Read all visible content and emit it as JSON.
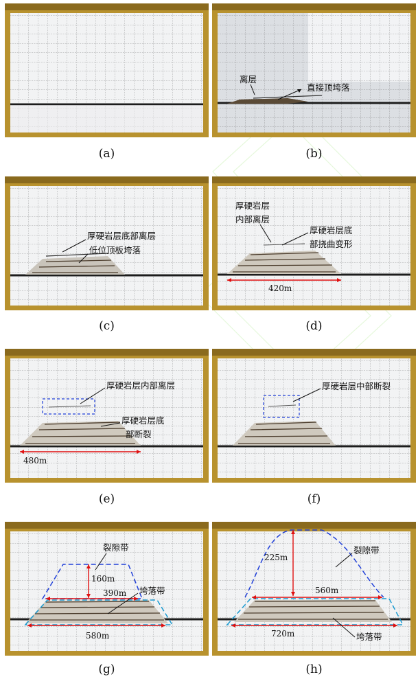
{
  "panels": [
    {
      "caption": "(a)",
      "labels": [],
      "dims": []
    },
    {
      "caption": "(b)",
      "labels": [
        "离层",
        "直接顶垮落"
      ],
      "dims": []
    },
    {
      "caption": "(c)",
      "labels": [
        "厚硬岩层底部离层",
        "低位顶板垮落"
      ],
      "dims": []
    },
    {
      "caption": "(d)",
      "labels": [
        "厚硬岩层",
        "内部离层",
        "厚硬岩层底",
        "部挠曲变形"
      ],
      "dims": [
        "420m"
      ]
    },
    {
      "caption": "(e)",
      "labels": [
        "厚硬岩层内部离层",
        "厚硬岩层底",
        "部断裂"
      ],
      "dims": [
        "480m"
      ]
    },
    {
      "caption": "(f)",
      "labels": [
        "厚硬岩层中部断裂"
      ],
      "dims": []
    },
    {
      "caption": "(g)",
      "labels": [
        "裂隙带",
        "垮落带"
      ],
      "dims": [
        "160m",
        "390m",
        "580m"
      ]
    },
    {
      "caption": "(h)",
      "labels": [
        "裂隙带",
        "垮落带"
      ],
      "dims": [
        "225m",
        "560m",
        "720m"
      ]
    }
  ],
  "colors": {
    "frame": "#b8922e",
    "board": "#f2f3f4",
    "coal_seam": "#1c1c1c",
    "arrow_red": "#e01010",
    "boundary_blue": "#1f3fd8",
    "boundary_cyan": "#1a9ad0",
    "watermark": "#9be07a"
  }
}
